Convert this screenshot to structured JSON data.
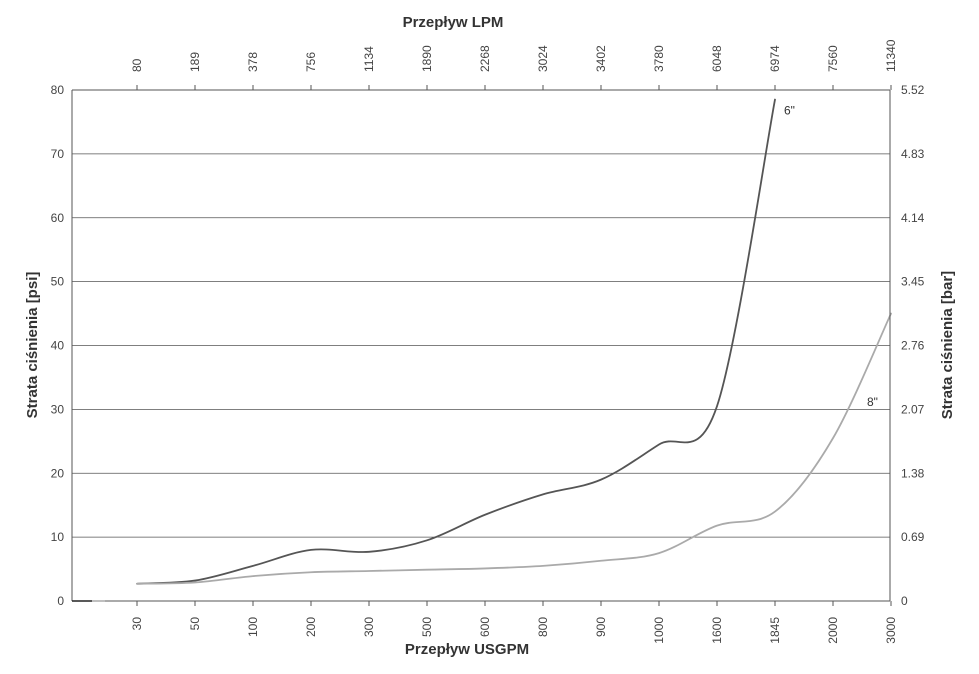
{
  "chart_data": {
    "type": "line",
    "title": "",
    "x_bottom": {
      "label": "Przepływ USGPM",
      "ticks": [
        "30",
        "50",
        "100",
        "200",
        "300",
        "500",
        "600",
        "800",
        "900",
        "1000",
        "1600",
        "1845",
        "2000",
        "3000"
      ]
    },
    "x_top": {
      "label": "Przepływ LPM",
      "ticks": [
        "80",
        "189",
        "378",
        "756",
        "1134",
        "1890",
        "2268",
        "3024",
        "3402",
        "3780",
        "6048",
        "6974",
        "7560",
        "11340"
      ]
    },
    "y_left": {
      "label": "Strata ciśnienia [psi]",
      "ticks": [
        "0",
        "10",
        "20",
        "30",
        "40",
        "50",
        "60",
        "70",
        "80"
      ],
      "ylim": [
        0,
        80
      ]
    },
    "y_right": {
      "label": "Strata ciśnienia [bar]",
      "ticks": [
        "0",
        "0.69",
        "1.38",
        "2.07",
        "2.76",
        "3.45",
        "4.14",
        "4.83",
        "5.52"
      ]
    },
    "grid": "horizontal",
    "series": [
      {
        "name": "6\"",
        "color": "#555555",
        "x": [
          "30",
          "50",
          "100",
          "200",
          "300",
          "500",
          "600",
          "800",
          "900",
          "1000",
          "1600",
          "1845"
        ],
        "y": [
          2.7,
          3.2,
          5.5,
          8.0,
          7.7,
          9.5,
          13.5,
          16.7,
          19.0,
          24.5,
          30.5,
          78.5
        ]
      },
      {
        "name": "8\"",
        "color": "#aaaaaa",
        "x": [
          "30",
          "50",
          "100",
          "200",
          "300",
          "500",
          "600",
          "800",
          "900",
          "1000",
          "1600",
          "1845",
          "2000",
          "3000"
        ],
        "y": [
          2.7,
          2.9,
          3.9,
          4.5,
          4.7,
          4.9,
          5.1,
          5.5,
          6.3,
          7.5,
          11.8,
          14.0,
          25.5,
          45.0
        ]
      }
    ]
  }
}
